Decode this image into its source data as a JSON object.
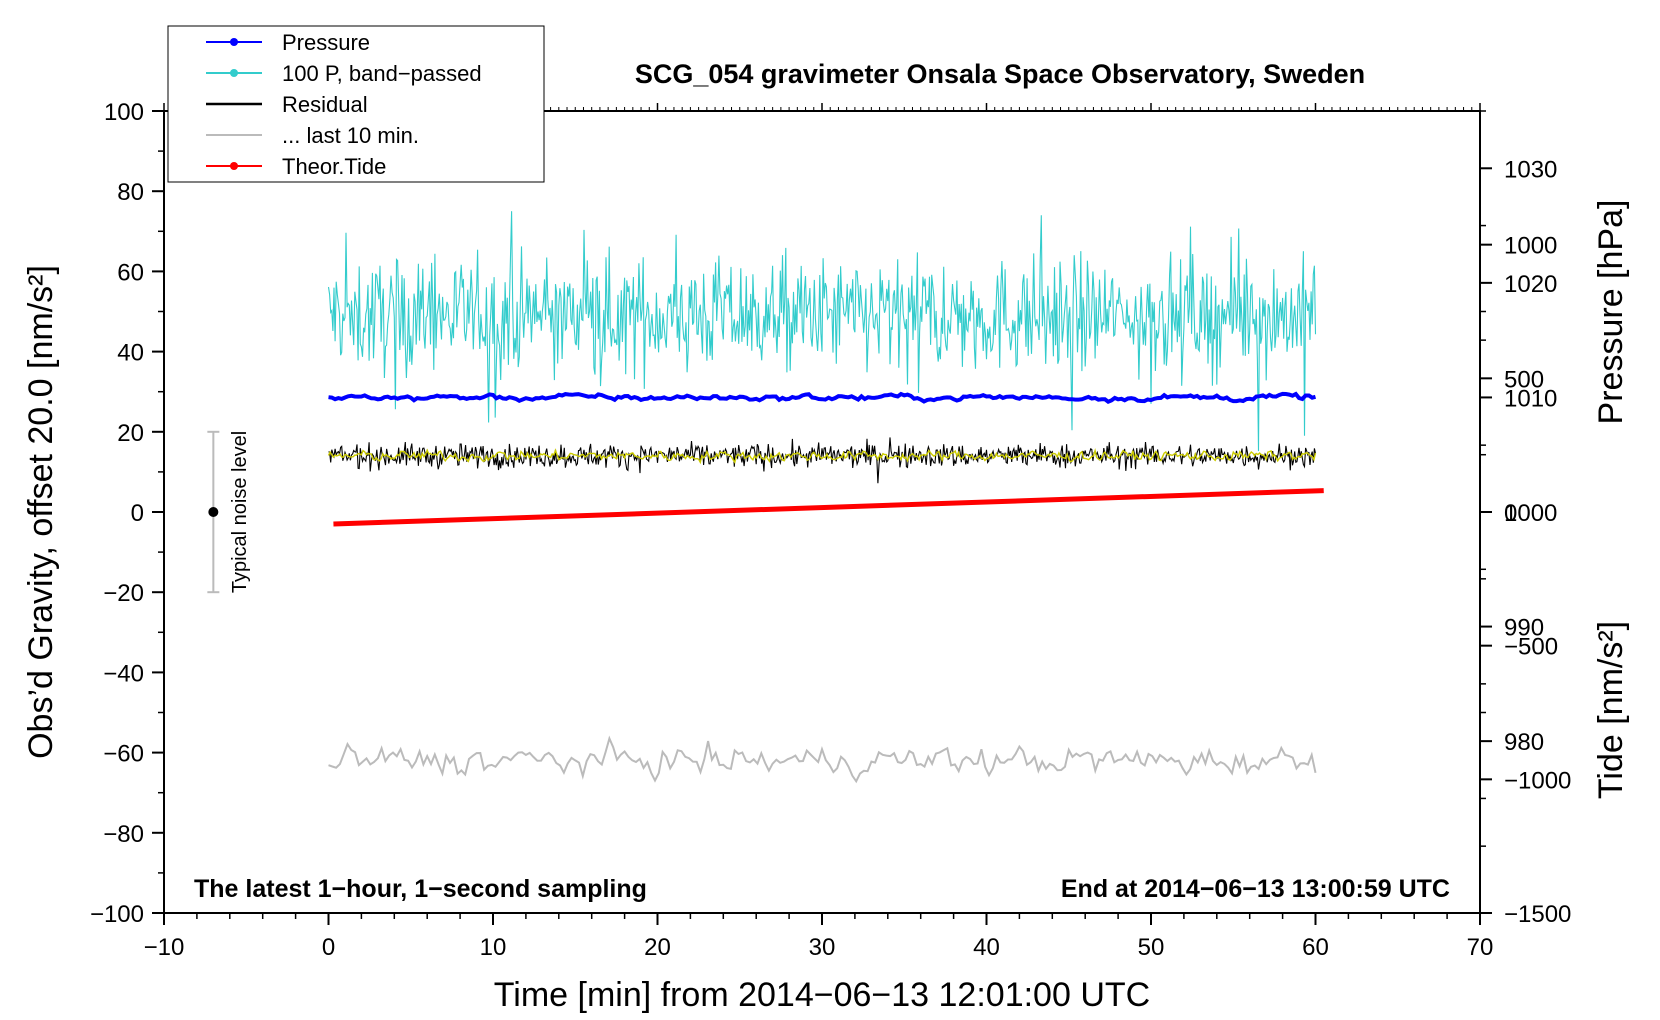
{
  "chart_data": {
    "type": "line",
    "title": "SCG_054 gravimeter Onsala Space Observatory, Sweden",
    "xlabel": "Time [min] from 2014−06−13 12:01:00 UTC",
    "ylabel_left": "Obs’d Gravity, offset 20.0 [nm/s²]",
    "ylabel_right_pressure": "Pressure [hPa]",
    "ylabel_right_tide": "Tide [nm/s²]",
    "xlim": [
      -10,
      70
    ],
    "ylim_left": [
      -100,
      100
    ],
    "ylim_pressure": [
      965,
      1035
    ],
    "ylim_tide": [
      -1500,
      1500
    ],
    "x_ticks": [
      "−10",
      "0",
      "10",
      "20",
      "30",
      "40",
      "50",
      "60",
      "70"
    ],
    "y_ticks_left": [
      "100",
      "80",
      "60",
      "40",
      "20",
      "0",
      "−20",
      "−40",
      "−60",
      "−80",
      "−100"
    ],
    "y_ticks_pressure": [
      "1030",
      "1020",
      "1010",
      "1000",
      "990",
      "980"
    ],
    "y_ticks_tide": [
      "1000",
      "500",
      "0",
      "−500",
      "−1000",
      "−1500"
    ],
    "annotation_left": "The latest 1−hour, 1−second sampling",
    "annotation_right": "End at 2014−06−13 13:00:59 UTC",
    "noise_label": "Typical noise level",
    "noise_bar": {
      "x": -7,
      "center": 0,
      "low": -20,
      "high": 20
    },
    "legend": [
      {
        "label": "Pressure",
        "color": "#0000ff",
        "marker": true
      },
      {
        "label": "100 P, band−passed",
        "color": "#33cccc",
        "marker": true
      },
      {
        "label": "Residual",
        "color": "#000000",
        "marker": false
      },
      {
        "label": "... last 10 min.",
        "color": "#bbbbbb",
        "marker": false
      },
      {
        "label": "Theor.Tide",
        "color": "#ff0000",
        "marker": true
      }
    ],
    "series": [
      {
        "name": "Pressure",
        "axis": "pressure",
        "x_start": 0,
        "x_end": 60,
        "level": 1010.0,
        "amplitude": 0.2,
        "color": "#0000ff"
      },
      {
        "name": "100 P, band−passed",
        "axis": "gravity",
        "x_start": 0,
        "x_end": 60,
        "level": 49,
        "amplitude": 7,
        "color": "#33cccc"
      },
      {
        "name": "Residual",
        "axis": "gravity",
        "x_start": 0,
        "x_end": 60,
        "level": 14,
        "amplitude": 1.5,
        "color": "#000000"
      },
      {
        "name": "Residual smoothed",
        "axis": "gravity",
        "x_start": 0,
        "x_end": 60,
        "level": 14,
        "amplitude": 0.6,
        "color": "#cccc00"
      },
      {
        "name": "... last 10 min.",
        "axis": "gravity",
        "x_start": 0,
        "x_end": 60,
        "level": -62,
        "amplitude": 1.6,
        "color": "#bbbbbb"
      },
      {
        "name": "Theor.Tide",
        "axis": "tide",
        "x": [
          0.3,
          60.5
        ],
        "y": [
          -45,
          80
        ],
        "color": "#ff0000"
      }
    ]
  }
}
